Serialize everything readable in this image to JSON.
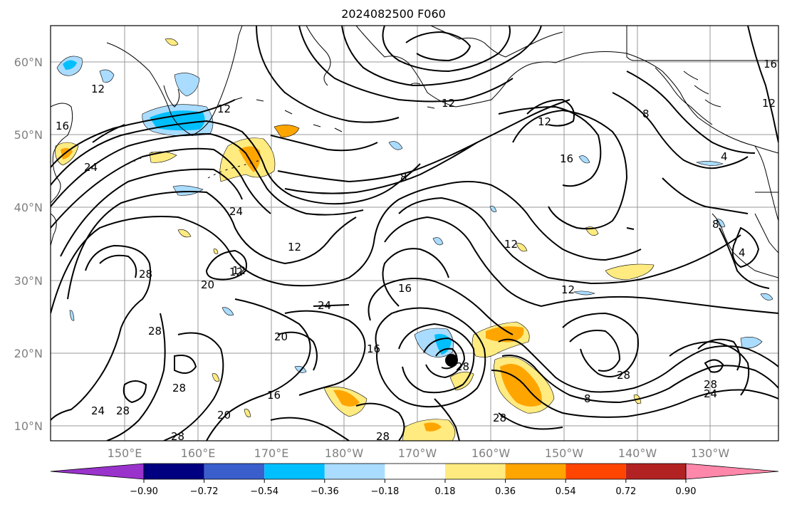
{
  "title": "2024082500 F060",
  "map": {
    "lat_labels": [
      "60°N",
      "50°N",
      "40°N",
      "30°N",
      "20°N",
      "10°N"
    ],
    "lon_labels": [
      "150°E",
      "160°E",
      "170°E",
      "180°W",
      "170°W",
      "160°W",
      "150°W",
      "140°W",
      "130°W"
    ],
    "contour_labels": [
      "12",
      "12",
      "16",
      "24",
      "12",
      "8",
      "12",
      "12",
      "8",
      "16",
      "4",
      "16",
      "12",
      "8",
      "4",
      "24",
      "12",
      "12",
      "12",
      "28",
      "20",
      "16",
      "24",
      "12",
      "28",
      "28",
      "20",
      "16",
      "16",
      "28",
      "28",
      "24",
      "28",
      "20",
      "28",
      "28",
      "8",
      "28",
      "28",
      "24"
    ],
    "colors": {
      "land_line": "#000000",
      "grid": "#999999",
      "contour": "#000000",
      "marker": "#000000"
    }
  },
  "colorbar": {
    "ticks": [
      "−0.90",
      "−0.72",
      "−0.54",
      "−0.36",
      "−0.18",
      "0.18",
      "0.36",
      "0.54",
      "0.72",
      "0.90"
    ],
    "colors": [
      "#9933cc",
      "#000080",
      "#3a5fcd",
      "#00bfff",
      "#aadcff",
      "#ffffff",
      "#ffeb80",
      "#ffa500",
      "#ff4500",
      "#b22222",
      "#ff88aa"
    ]
  }
}
